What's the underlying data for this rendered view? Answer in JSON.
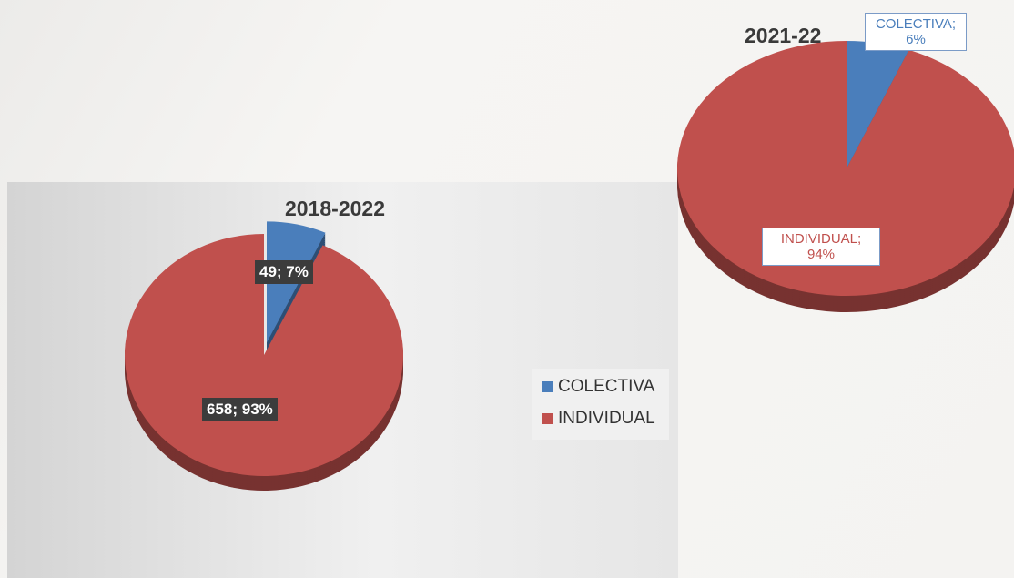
{
  "chart_data": [
    {
      "type": "pie",
      "title": "2018-2022",
      "categories": [
        "COLECTIVA",
        "INDIVIDUAL"
      ],
      "values": [
        49,
        658
      ],
      "value_labels": [
        "49; 7%",
        "658; 93%"
      ],
      "colors": [
        "#4a7ebb",
        "#c0504d"
      ],
      "legend": "right"
    },
    {
      "type": "pie",
      "title": "2021-22",
      "categories": [
        "COLECTIVA",
        "INDIVIDUAL"
      ],
      "values": [
        6,
        94
      ],
      "value_labels": [
        "COLECTIVA; 6%",
        "INDIVIDUAL; 94%"
      ],
      "colors": [
        "#4a7ebb",
        "#c0504d"
      ]
    }
  ]
}
